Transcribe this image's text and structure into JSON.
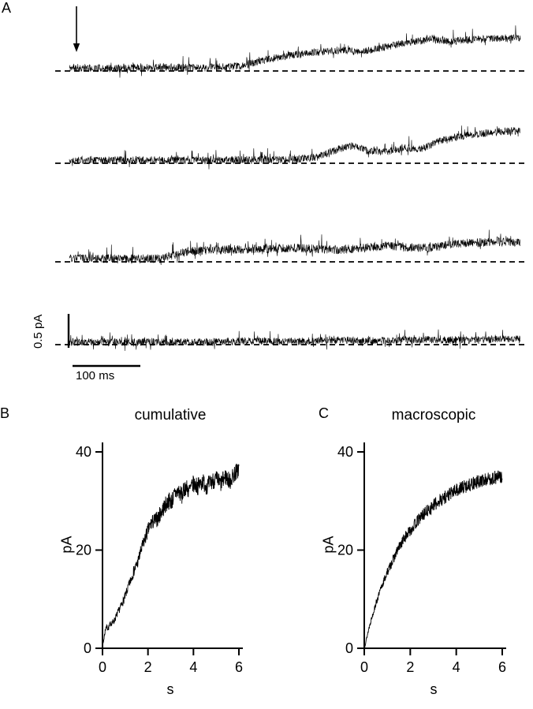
{
  "figure": {
    "panel_a": {
      "label": "A",
      "scalebar_vertical_label": "0.5 pA",
      "scalebar_horizontal_label": "100 ms"
    },
    "panel_b": {
      "label": "B",
      "title": "cumulative",
      "ylabel": "pA",
      "xlabel": "s"
    },
    "panel_c": {
      "label": "C",
      "title": "macroscopic",
      "ylabel": "pA",
      "xlabel": "s"
    }
  },
  "chart_data": [
    {
      "id": "traces",
      "type": "line",
      "panel": "A",
      "description": "Four consecutive noisy single-channel current sweeps rising above dashed zero-current baselines following a stimulus marked by a downward arrow",
      "y_scalebar": {
        "label": "0.5 pA",
        "pA": 0.5
      },
      "x_scalebar": {
        "label": "100 ms",
        "ms": 100
      },
      "sweep_duration_ms": 660,
      "units": "pA above dashed baseline",
      "traces": [
        {
          "name": "sweep-1",
          "noise_pA": 0.06,
          "mean_keypoints": [
            [
              0,
              0.05
            ],
            [
              0.1,
              0.04
            ],
            [
              0.2,
              0.06
            ],
            [
              0.3,
              0.05
            ],
            [
              0.38,
              0.08
            ],
            [
              0.45,
              0.2
            ],
            [
              0.5,
              0.26
            ],
            [
              0.55,
              0.3
            ],
            [
              0.6,
              0.33
            ],
            [
              0.65,
              0.3
            ],
            [
              0.7,
              0.38
            ],
            [
              0.75,
              0.45
            ],
            [
              0.8,
              0.5
            ],
            [
              0.85,
              0.47
            ],
            [
              0.9,
              0.5
            ],
            [
              1,
              0.53
            ]
          ]
        },
        {
          "name": "sweep-2",
          "noise_pA": 0.06,
          "mean_keypoints": [
            [
              0,
              0.05
            ],
            [
              0.3,
              0.05
            ],
            [
              0.5,
              0.06
            ],
            [
              0.55,
              0.1
            ],
            [
              0.6,
              0.23
            ],
            [
              0.63,
              0.28
            ],
            [
              0.66,
              0.2
            ],
            [
              0.7,
              0.17
            ],
            [
              0.74,
              0.25
            ],
            [
              0.78,
              0.22
            ],
            [
              0.82,
              0.35
            ],
            [
              0.86,
              0.42
            ],
            [
              0.9,
              0.46
            ],
            [
              0.95,
              0.5
            ],
            [
              1,
              0.52
            ]
          ]
        },
        {
          "name": "sweep-3",
          "noise_pA": 0.07,
          "mean_keypoints": [
            [
              0,
              0.05
            ],
            [
              0.2,
              0.05
            ],
            [
              0.26,
              0.16
            ],
            [
              0.3,
              0.18
            ],
            [
              0.4,
              0.2
            ],
            [
              0.5,
              0.22
            ],
            [
              0.6,
              0.19
            ],
            [
              0.7,
              0.25
            ],
            [
              0.8,
              0.22
            ],
            [
              0.85,
              0.28
            ],
            [
              0.9,
              0.3
            ],
            [
              0.95,
              0.33
            ],
            [
              1,
              0.3
            ]
          ]
        },
        {
          "name": "sweep-4",
          "noise_pA": 0.06,
          "mean_keypoints": [
            [
              0,
              0.04
            ],
            [
              0.3,
              0.04
            ],
            [
              0.4,
              0.06
            ],
            [
              0.5,
              0.05
            ],
            [
              0.6,
              0.07
            ],
            [
              0.7,
              0.06
            ],
            [
              0.8,
              0.08
            ],
            [
              0.9,
              0.07
            ],
            [
              1,
              0.1
            ]
          ]
        }
      ]
    },
    {
      "id": "cumulative",
      "type": "line",
      "panel": "B",
      "title": "cumulative",
      "xlabel": "s",
      "ylabel": "pA",
      "xlim": [
        0,
        6
      ],
      "ylim": [
        0,
        40
      ],
      "xticks": [
        0,
        2,
        4,
        6
      ],
      "yticks": [
        0,
        20,
        40
      ],
      "noise_pA": 1.8,
      "keypoints": [
        [
          0,
          0
        ],
        [
          0.08,
          2.5
        ],
        [
          0.15,
          4.5
        ],
        [
          0.25,
          4
        ],
        [
          0.35,
          5
        ],
        [
          0.5,
          5.5
        ],
        [
          0.65,
          7
        ],
        [
          0.8,
          8.5
        ],
        [
          0.95,
          10
        ],
        [
          1.1,
          12
        ],
        [
          1.25,
          14
        ],
        [
          1.4,
          16
        ],
        [
          1.55,
          17.5
        ],
        [
          1.7,
          20
        ],
        [
          1.85,
          22
        ],
        [
          2.0,
          24
        ],
        [
          2.15,
          25.5
        ],
        [
          2.3,
          26
        ],
        [
          2.45,
          26.5
        ],
        [
          2.6,
          28
        ],
        [
          2.75,
          29
        ],
        [
          2.9,
          30
        ],
        [
          3.05,
          30
        ],
        [
          3.2,
          31.5
        ],
        [
          3.35,
          32
        ],
        [
          3.5,
          31
        ],
        [
          3.65,
          33
        ],
        [
          3.8,
          32
        ],
        [
          4.0,
          33.5
        ],
        [
          4.2,
          33
        ],
        [
          4.4,
          34
        ],
        [
          4.6,
          33
        ],
        [
          4.8,
          34
        ],
        [
          5.0,
          34.5
        ],
        [
          5.2,
          33.5
        ],
        [
          5.4,
          35
        ],
        [
          5.6,
          34
        ],
        [
          5.8,
          35.5
        ],
        [
          6.0,
          36.5
        ]
      ]
    },
    {
      "id": "macroscopic",
      "type": "line",
      "panel": "C",
      "title": "macroscopic",
      "xlabel": "s",
      "ylabel": "pA",
      "xlim": [
        0,
        6
      ],
      "ylim": [
        0,
        40
      ],
      "xticks": [
        0,
        2,
        4,
        6
      ],
      "yticks": [
        0,
        20,
        40
      ],
      "noise_pA": 1.4,
      "keypoints": [
        [
          0,
          0
        ],
        [
          0.25,
          5
        ],
        [
          0.5,
          9
        ],
        [
          0.75,
          12.5
        ],
        [
          1,
          15.5
        ],
        [
          1.25,
          18
        ],
        [
          1.5,
          20.5
        ],
        [
          1.75,
          22.5
        ],
        [
          2,
          24
        ],
        [
          2.25,
          25.5
        ],
        [
          2.5,
          27
        ],
        [
          2.75,
          28
        ],
        [
          3,
          29
        ],
        [
          3.25,
          30
        ],
        [
          3.5,
          30.8
        ],
        [
          3.75,
          31.5
        ],
        [
          4,
          32.2
        ],
        [
          4.25,
          32.7
        ],
        [
          4.5,
          33.2
        ],
        [
          4.75,
          33.6
        ],
        [
          5,
          34
        ],
        [
          5.25,
          34.3
        ],
        [
          5.5,
          34.6
        ],
        [
          5.75,
          34.8
        ],
        [
          6,
          35
        ]
      ]
    }
  ]
}
